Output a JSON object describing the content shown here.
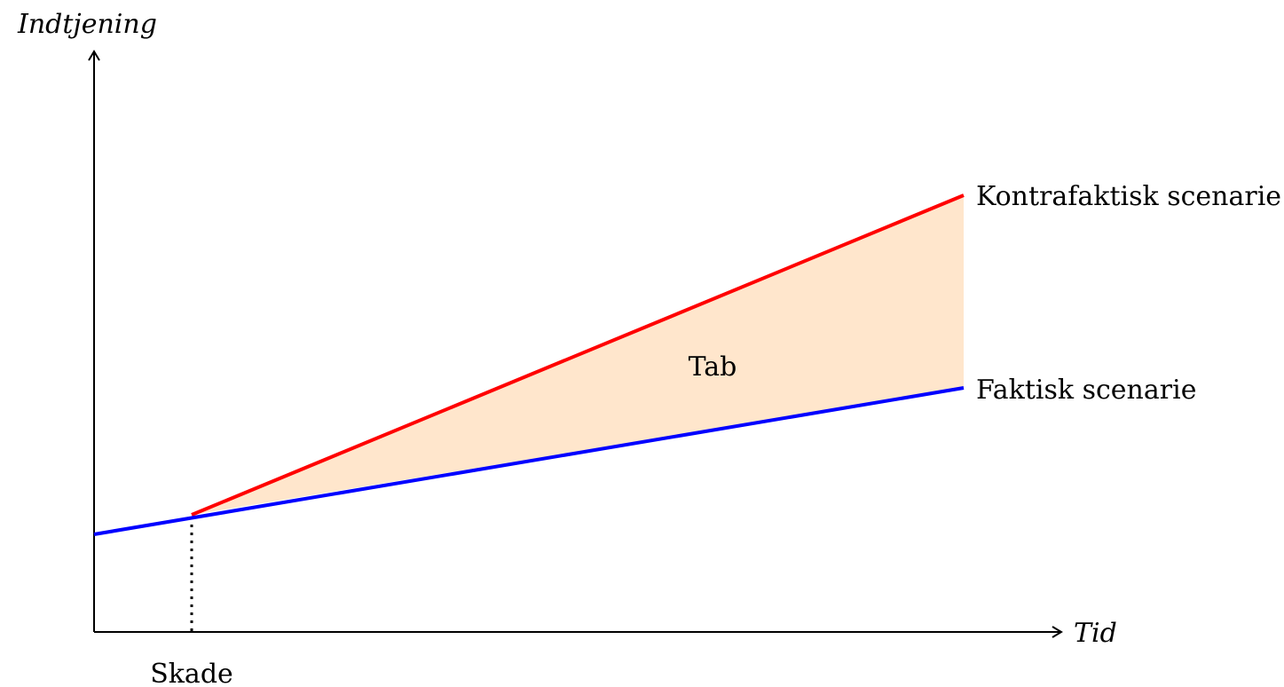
{
  "axes": {
    "y_label": "Indtjening",
    "x_label": "Tid"
  },
  "event": {
    "label": "Skade"
  },
  "scenarios": {
    "counterfactual": {
      "label": "Kontrafaktisk scenarie",
      "color": "#ff0000"
    },
    "actual": {
      "label": "Faktisk scenarie",
      "color": "#0000ff"
    }
  },
  "loss": {
    "label": "Tab",
    "fill_color": "#ffe6cc"
  }
}
